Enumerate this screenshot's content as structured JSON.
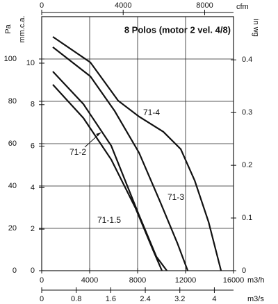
{
  "chart_data": {
    "type": "line",
    "title": "8 Polos (motor 2 vel. 4/8)",
    "xlabel": "m3/h",
    "xlim": [
      0,
      16000
    ],
    "xticks": [
      0,
      4000,
      8000,
      12000,
      16000
    ],
    "x2label": "m3/s",
    "x2lim": [
      0,
      4.444
    ],
    "x2ticks": [
      0,
      0.8,
      1.6,
      2.4,
      3.2,
      4
    ],
    "x3label": "cfm",
    "x3lim": [
      0,
      9417
    ],
    "x3ticks": [
      0,
      4000,
      8000
    ],
    "ylabel": "Pa",
    "ylim": [
      0,
      120
    ],
    "yticks": [
      0,
      20,
      40,
      60,
      80,
      100
    ],
    "y3label": "mm.c.a.",
    "y3lim": [
      0,
      12.24
    ],
    "y3ticks": [
      0,
      2,
      4,
      6,
      8,
      10
    ],
    "y2label": "in wg",
    "y2lim": [
      0,
      0.482
    ],
    "y2ticks": [
      0,
      0.1,
      0.2,
      0.3,
      0.4
    ],
    "grid": true,
    "series": [
      {
        "name": "71-4",
        "color": "#111111",
        "x": [
          928,
          4060,
          6380,
          8120,
          10150,
          11600,
          12760,
          13920,
          14960
        ],
        "values": [
          110.5,
          98.4,
          80.3,
          72.8,
          65.6,
          57.4,
          42.6,
          23.0,
          0
        ]
      },
      {
        "name": "71-3",
        "color": "#111111",
        "x": [
          928,
          4060,
          6090,
          8120,
          9860,
          11310,
          12180
        ],
        "values": [
          105.6,
          91.8,
          75.4,
          55.7,
          32.8,
          13.1,
          0
        ]
      },
      {
        "name": "71-2",
        "color": "#111111",
        "x": [
          928,
          3480,
          5800,
          8120,
          9570,
          10440
        ],
        "values": [
          94.1,
          78.7,
          59.0,
          26.2,
          6.6,
          0
        ]
      },
      {
        "name": "71-1.5",
        "color": "#111111",
        "x": [
          928,
          3480,
          5800,
          7830,
          9280,
          10030
        ],
        "values": [
          87.9,
          72.1,
          52.5,
          29.5,
          9.8,
          0
        ]
      }
    ]
  }
}
